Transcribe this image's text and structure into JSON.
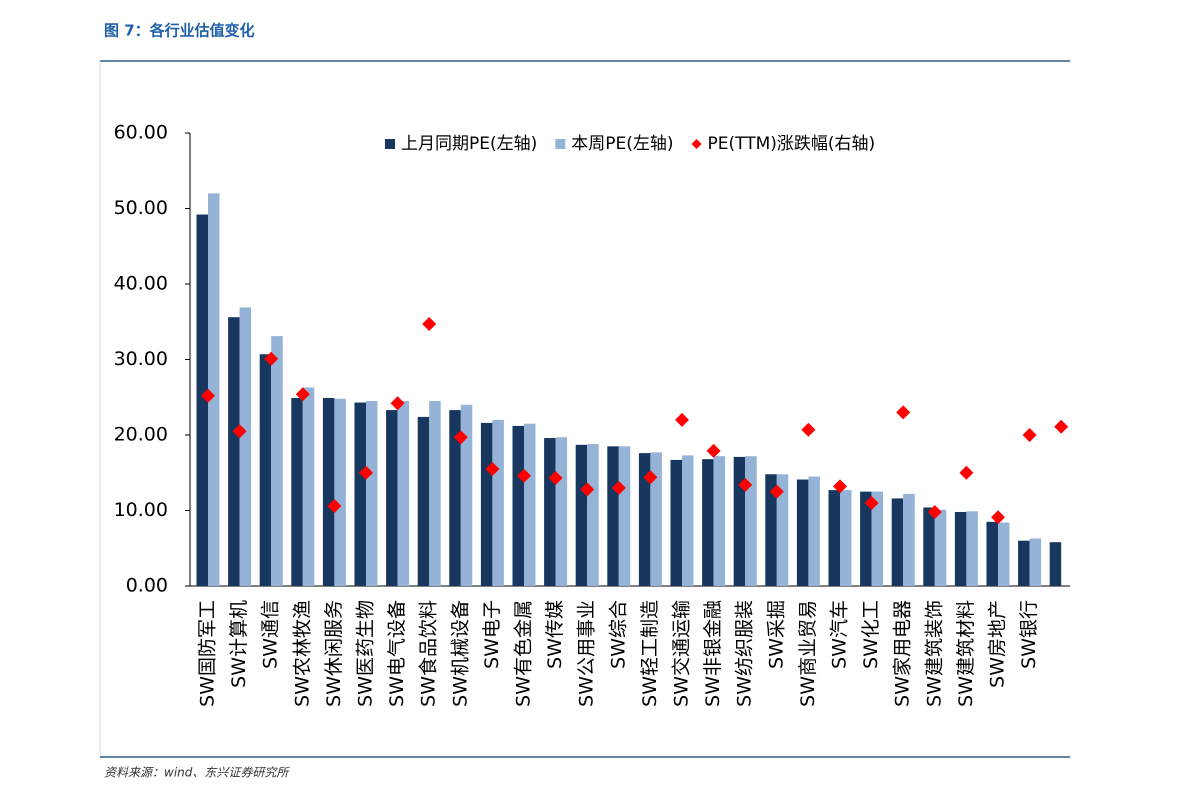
{
  "header": {
    "title": "图 7：各行业估值变化"
  },
  "footer": {
    "source": "资料来源：wind、东兴证券研究所"
  },
  "chart_data": {
    "type": "bar",
    "categories": [
      "SW国防军工",
      "SW计算机",
      "SW通信",
      "SW农林牧渔",
      "SW休闲服务",
      "SW医药生物",
      "SW电气设备",
      "SW食品饮料",
      "SW机械设备",
      "SW电子",
      "SW有色金属",
      "SW传媒",
      "SW公用事业",
      "SW综合",
      "SW轻工制造",
      "SW交通运输",
      "SW非银金融",
      "SW纺织服装",
      "SW采掘",
      "SW商业贸易",
      "SW汽车",
      "SW化工",
      "SW家用电器",
      "SW建筑装饰",
      "SW建筑材料",
      "SW房地产",
      "SW银行",
      null
    ],
    "series": [
      {
        "name": "上月同期PE(左轴)",
        "color": "#17375e",
        "values": [
          49.2,
          35.6,
          30.7,
          24.9,
          24.9,
          24.3,
          23.3,
          22.4,
          23.3,
          21.6,
          21.2,
          19.6,
          18.7,
          18.5,
          17.6,
          16.7,
          16.8,
          17.1,
          14.8,
          14.1,
          12.7,
          12.5,
          11.6,
          10.4,
          9.8,
          8.5,
          6.0,
          5.8
        ]
      },
      {
        "name": "本周PE(左轴)",
        "color": "#95b3d7",
        "values": [
          52.0,
          36.9,
          33.1,
          26.3,
          24.8,
          24.5,
          24.5,
          24.5,
          24.0,
          22.0,
          21.5,
          19.7,
          18.8,
          18.5,
          17.7,
          17.3,
          17.2,
          17.2,
          14.8,
          14.5,
          12.7,
          12.5,
          12.2,
          10.1,
          9.9,
          8.4,
          6.3,
          null
        ]
      },
      {
        "name": "PE(TTM)涨跌幅(右轴)",
        "color": "#ff0000",
        "marker": "diamond",
        "values": [
          25.2,
          20.5,
          30.1,
          25.4,
          10.6,
          15.0,
          24.2,
          34.7,
          19.7,
          15.5,
          14.6,
          14.3,
          12.8,
          13.0,
          14.4,
          22.0,
          17.9,
          13.4,
          12.5,
          20.7,
          13.2,
          11.0,
          23.0,
          9.8,
          15.0,
          9.1,
          20.0,
          21.1
        ]
      }
    ],
    "ylim": [
      0,
      60
    ],
    "yticks": [
      {
        "value": 0,
        "label": "0.00"
      },
      {
        "value": 10,
        "label": "10.00"
      },
      {
        "value": 20,
        "label": "20.00"
      },
      {
        "value": 30,
        "label": "30.00"
      },
      {
        "value": 40,
        "label": "40.00"
      },
      {
        "value": 50,
        "label": "50.00"
      },
      {
        "value": 60,
        "label": "60.00"
      }
    ]
  }
}
